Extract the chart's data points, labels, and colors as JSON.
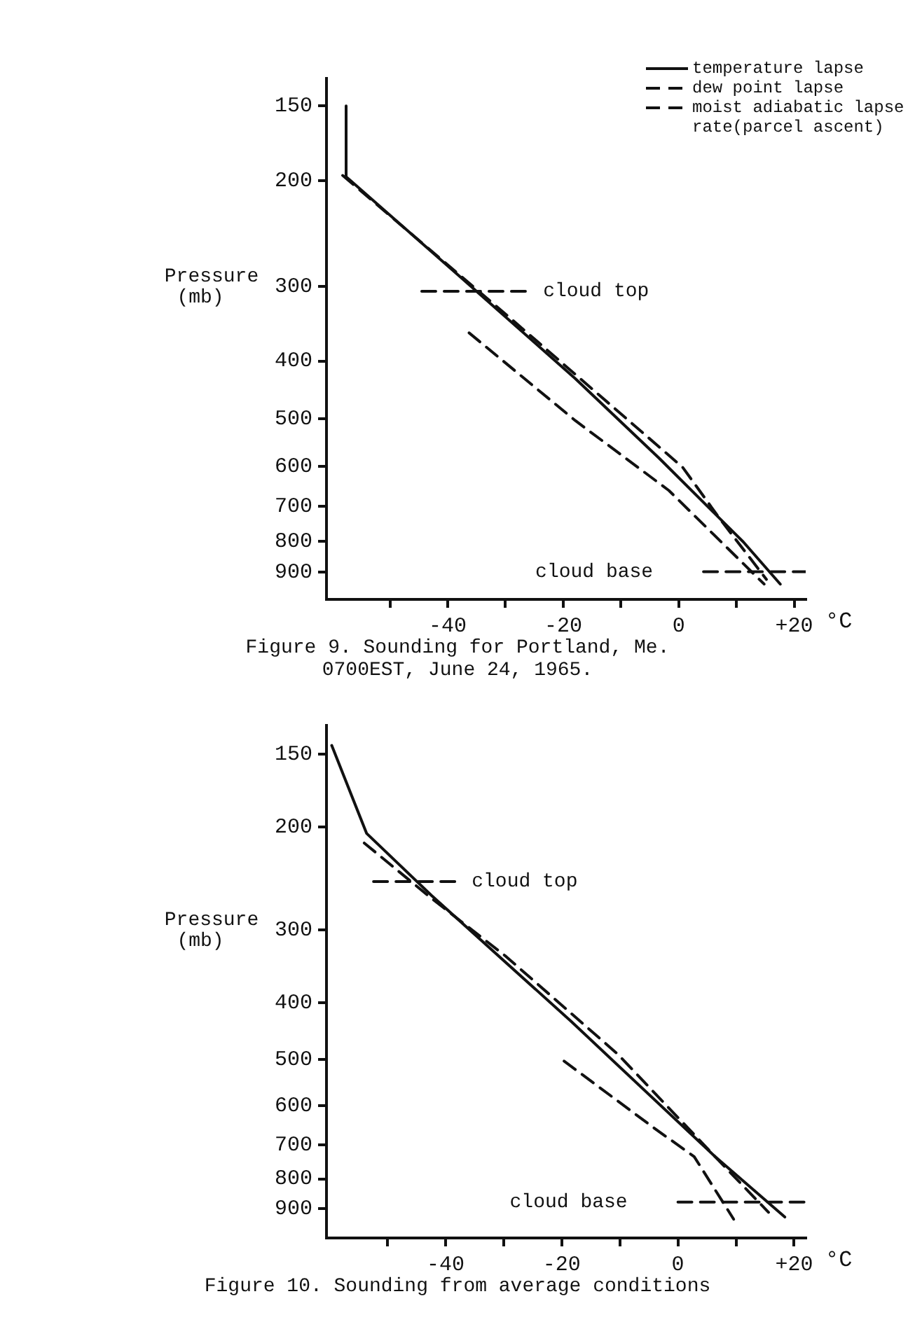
{
  "chart_data": [
    {
      "type": "line",
      "title": "Figure 9. Sounding for Portland, Me.",
      "subtitle": "0700EST, June 24, 1965.",
      "xlabel": "°C",
      "ylabel": "Pressure\n(mb)",
      "log": "y",
      "marker": "none",
      "legend": "top right",
      "xlim": [
        -61,
        22
      ],
      "xticks": [
        {
          "value": -50,
          "label": null
        },
        -40,
        {
          "value": -30,
          "label": null
        },
        -20,
        {
          "value": -10,
          "label": null
        },
        0,
        {
          "value": 10,
          "label": null
        },
        {
          "value": 20,
          "label": "+20"
        }
      ],
      "ylim": [
        1000,
        135
      ],
      "yticks": [
        150,
        200,
        300,
        400,
        500,
        600,
        700,
        800,
        900
      ],
      "series": [
        {
          "name": "temperature lapse",
          "color": "#111111",
          "line_style": "solid",
          "x": [
            -57.6,
            -57.6,
            -38.1,
            -17.9,
            -3.4,
            11.2,
            17.6
          ],
          "values": [
            150,
            197,
            288,
            428,
            581,
            802,
            943
          ]
        },
        {
          "name": "dew point lapse",
          "color": "#111111",
          "line_style": "dashed",
          "x": [
            -36.3,
            -17.9,
            -1.7,
            14.8
          ],
          "values": [
            359,
            503,
            658,
            943
          ]
        },
        {
          "name": "moist adiabatic lapse rate(parcel ascent)",
          "color": "#111111",
          "line_style": "dashed",
          "x": [
            -58.2,
            -29.2,
            0.7,
            7.1,
            15.2
          ],
          "values": [
            196,
            339,
            602,
            733,
            926
          ]
        },
        {
          "color": "#111111",
          "line_style": "dashed",
          "x": [
            -44.5,
            -26.4
          ],
          "values": [
            306,
            306
          ]
        },
        {
          "color": "#111111",
          "line_style": "dashed",
          "x": [
            4.3,
            22
          ],
          "values": [
            899,
            899
          ]
        }
      ],
      "annotations": [
        "cloud top",
        "cloud base"
      ]
    },
    {
      "type": "line",
      "title": "Figure 10. Sounding from average conditions",
      "xlabel": "°C",
      "ylabel": "Pressure\n(mb)",
      "log": "y",
      "marker": "none",
      "xlim": [
        -60.5,
        22
      ],
      "xticks": [
        {
          "value": -50,
          "label": null
        },
        -40,
        {
          "value": -30,
          "label": null
        },
        -20,
        {
          "value": -10,
          "label": null
        },
        0,
        {
          "value": 10,
          "label": null
        },
        {
          "value": 20,
          "label": "+20"
        }
      ],
      "ylim": [
        1010,
        134
      ],
      "yticks": [
        150,
        200,
        300,
        400,
        500,
        600,
        700,
        800,
        900
      ],
      "series": [
        {
          "color": "#111111",
          "line_style": "solid",
          "x": [
            -59.6,
            -53.6,
            -42.4,
            -18.4,
            6.4,
            18.4
          ],
          "values": [
            145,
            205,
            262,
            430,
            733,
            930
          ]
        },
        {
          "color": "#111111",
          "line_style": "dashed",
          "x": [
            -19.6,
            -4,
            2.8,
            9.6
          ],
          "values": [
            503,
            656,
            733,
            938
          ]
        },
        {
          "color": "#111111",
          "line_style": "dashed",
          "x": [
            -54,
            -42.4,
            -29.6,
            -10.4,
            6.4,
            15.6
          ],
          "values": [
            213,
            265,
            333,
            489,
            733,
            913
          ]
        },
        {
          "color": "#111111",
          "line_style": "dashed",
          "x": [
            -52.4,
            -38.4
          ],
          "values": [
            248,
            248
          ]
        },
        {
          "color": "#111111",
          "line_style": "dashed",
          "x": [
            0,
            22
          ],
          "values": [
            877,
            877
          ]
        }
      ],
      "annotations": [
        "cloud top",
        "cloud base"
      ]
    }
  ]
}
